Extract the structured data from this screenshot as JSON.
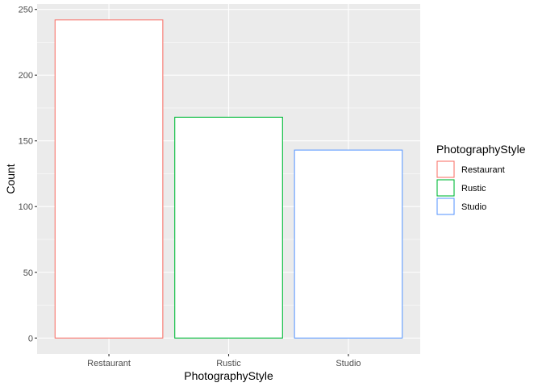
{
  "chart_data": {
    "type": "bar",
    "categories": [
      "Restaurant",
      "Rustic",
      "Studio"
    ],
    "values": [
      242,
      168,
      143
    ],
    "colors": [
      "#F8766D",
      "#00BA38",
      "#619CFF"
    ],
    "fill": "#ffffff",
    "xlabel": "PhotographyStyle",
    "ylabel": "Count",
    "ylim": [
      -12.1,
      254.1
    ],
    "yticks": [
      0,
      50,
      100,
      150,
      200,
      250
    ],
    "ytick_labels": [
      "0",
      "50",
      "100",
      "150",
      "200",
      "250"
    ],
    "grid": true,
    "panel_background": "#EBEBEB",
    "legend": {
      "title": "PhotographyStyle",
      "placement": "right",
      "items": [
        "Restaurant",
        "Rustic",
        "Studio"
      ]
    }
  }
}
